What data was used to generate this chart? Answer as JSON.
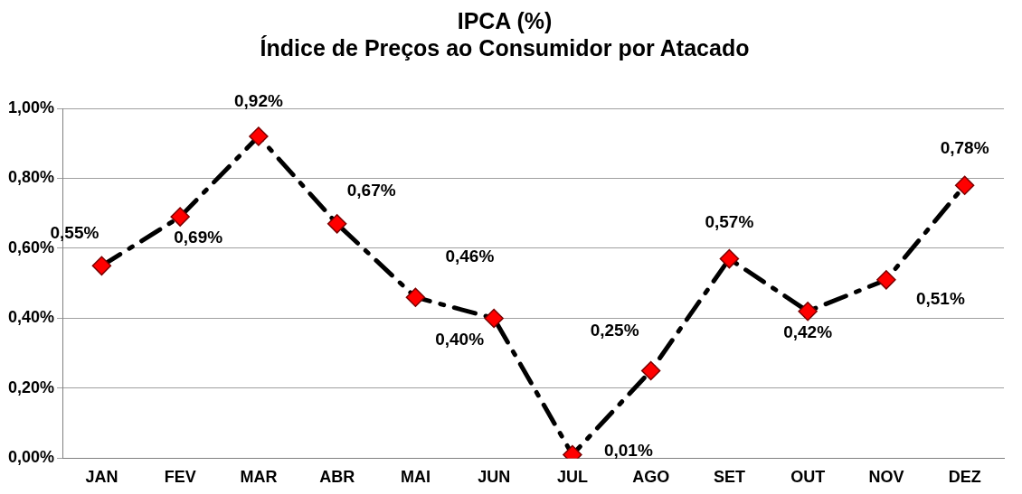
{
  "chart_data": {
    "type": "line",
    "title": [
      "IPCA (%)",
      "Índice de Preços ao Consumidor por Atacado"
    ],
    "categories": [
      "JAN",
      "FEV",
      "MAR",
      "ABR",
      "MAI",
      "JUN",
      "JUL",
      "AGO",
      "SET",
      "OUT",
      "NOV",
      "DEZ"
    ],
    "series": [
      {
        "color": "#000000",
        "colors": [
          "#ff0000",
          "#ff0000",
          "#ff0000",
          "#ff0000",
          "#ff0000",
          "#ff0000",
          "#ff0000",
          "#ff0000",
          "#ff0000",
          "#ff0000",
          "#ff0000",
          "#ff0000"
        ],
        "values": [
          0.55,
          0.69,
          0.92,
          0.67,
          0.46,
          0.4,
          0.01,
          0.25,
          0.57,
          0.42,
          0.51,
          0.78
        ],
        "value_labels": [
          "0,55%",
          "0,69%",
          "0,92%",
          "0,67%",
          "0,46%",
          "0,40%",
          "0,01%",
          "0,25%",
          "0,57%",
          "0,42%",
          "0,51%",
          "0,78%"
        ]
      }
    ],
    "ylim": [
      0,
      1
    ],
    "yticks": [
      {
        "value": 0,
        "label": "0,00%"
      },
      {
        "value": 0.2,
        "label": "0,20%"
      },
      {
        "value": 0.4,
        "label": "0,40%"
      },
      {
        "value": 0.6,
        "label": "0,60%"
      },
      {
        "value": 0.8,
        "label": "0,80%"
      },
      {
        "value": 1,
        "label": "1,00%"
      }
    ],
    "grid": "y",
    "legend": false,
    "marker": "diamond",
    "line_style": "dashed"
  }
}
